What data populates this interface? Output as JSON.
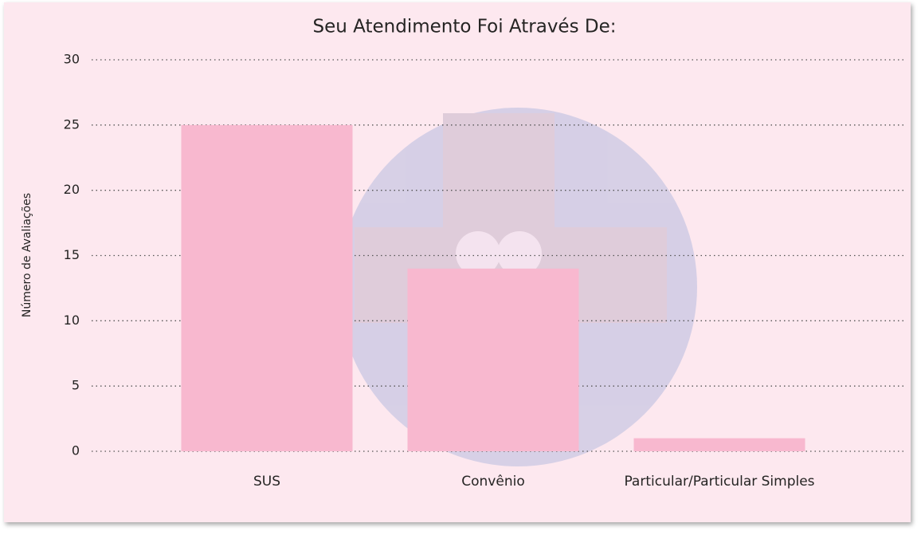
{
  "chart_data": {
    "type": "bar",
    "title": "Seu Atendimento Foi Através De:",
    "y_axis_label": "Número de Avaliações",
    "categories": [
      "SUS",
      "Convênio",
      "Particular/Particular Simples"
    ],
    "values": [
      25,
      14,
      1
    ],
    "color": "#f8b8cf",
    "ylim": [
      0,
      30
    ],
    "yticks": [
      0,
      5,
      10,
      15,
      20,
      25,
      30
    ],
    "grid": true
  }
}
